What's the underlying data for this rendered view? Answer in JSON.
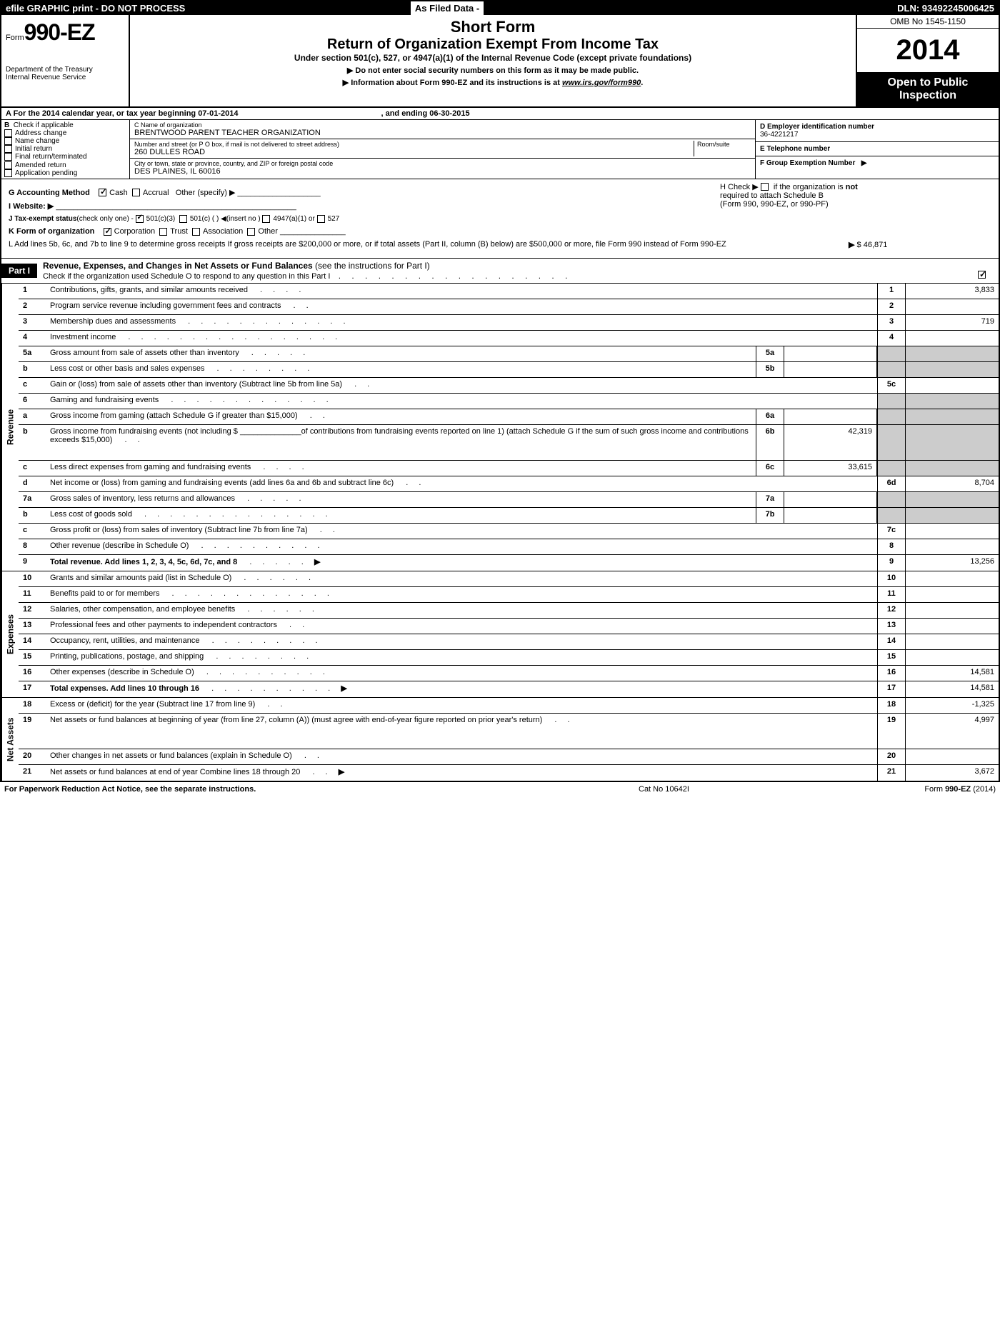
{
  "header": {
    "efile": "efile GRAPHIC print - DO NOT PROCESS",
    "asFiled": "As Filed Data -",
    "dln": "DLN: 93492245006425"
  },
  "title": {
    "formWord": "Form",
    "formNum": "990-EZ",
    "dept1": "Department of the Treasury",
    "dept2": "Internal Revenue Service",
    "shortForm": "Short Form",
    "returnTitle": "Return of Organization Exempt From Income Tax",
    "underSection": "Under section 501(c), 527, or 4947(a)(1) of the Internal Revenue Code (except private foundations)",
    "noSSN": "▶ Do not enter social security numbers on this form as it may be made public.",
    "infoAbout": "▶ Information about Form 990-EZ and its instructions is at",
    "infoLink": "www.irs.gov/form990",
    "omb": "OMB No 1545-1150",
    "year": "2014",
    "open1": "Open to Public",
    "open2": "Inspection"
  },
  "sectionA": {
    "rowA": "A  For the 2014 calendar year, or tax year beginning 07-01-2014",
    "ending": ", and ending 06-30-2015"
  },
  "sectionB": {
    "label": "B",
    "checkIf": "Check if applicable",
    "items": [
      "Address change",
      "Name change",
      "Initial return",
      "Final return/terminated",
      "Amended return",
      "Application pending"
    ]
  },
  "sectionC": {
    "nameLabel": "C Name of organization",
    "name": "BRENTWOOD PARENT TEACHER ORGANIZATION",
    "streetLabel": "Number and street (or P O box, if mail is not delivered to street address)",
    "roomLabel": "Room/suite",
    "street": "260 DULLES ROAD",
    "cityLabel": "City or town, state or province, country, and ZIP or foreign postal code",
    "city": "DES PLAINES, IL  60016"
  },
  "sectionD": {
    "label": "D Employer identification number",
    "value": "36-4221217"
  },
  "sectionE": {
    "label": "E Telephone number",
    "value": ""
  },
  "sectionF": {
    "label": "F Group Exemption Number",
    "arrow": "▶"
  },
  "sectionG": {
    "label": "G Accounting Method",
    "cash": "Cash",
    "accrual": "Accrual",
    "other": "Other (specify) ▶"
  },
  "sectionH": {
    "line1": "H  Check ▶",
    "line2": "if the organization is",
    "not": "not",
    "line3": "required to attach Schedule B",
    "line4": "(Form 990, 990-EZ, or 990-PF)"
  },
  "sectionI": {
    "label": "I Website: ▶"
  },
  "sectionJ": {
    "label": "J Tax-exempt status",
    "sub": "(check only one) -",
    "c3": "501(c)(3)",
    "c": "501(c) (   ) ◀(insert no )",
    "a": "4947(a)(1) or",
    "s527": "527"
  },
  "sectionK": {
    "label": "K Form of organization",
    "corp": "Corporation",
    "trust": "Trust",
    "assoc": "Association",
    "other": "Other"
  },
  "sectionL": {
    "text": "L Add lines 5b, 6c, and 7b to line 9 to determine gross receipts  If gross receipts are $200,000 or more, or if total assets (Part II, column (B) below) are $500,000 or more, file Form 990 instead of Form 990-EZ",
    "arrow": "▶",
    "value": "$ 46,871"
  },
  "part1": {
    "label": "Part I",
    "title": "Revenue, Expenses, and Changes in Net Assets or Fund Balances",
    "sub": "(see the instructions for Part I)",
    "schedO": "Check if the organization used Schedule O to respond to any question in this Part I"
  },
  "revenue": {
    "sideLabel": "Revenue",
    "lines": [
      {
        "num": "1",
        "desc": "Contributions, gifts, grants, and similar amounts received",
        "rnum": "1",
        "rval": "3,833"
      },
      {
        "num": "2",
        "desc": "Program service revenue including government fees and contracts",
        "rnum": "2",
        "rval": ""
      },
      {
        "num": "3",
        "desc": "Membership dues and assessments",
        "rnum": "3",
        "rval": "719"
      },
      {
        "num": "4",
        "desc": "Investment income",
        "rnum": "4",
        "rval": ""
      },
      {
        "num": "5a",
        "desc": "Gross amount from sale of assets other than inventory",
        "snum": "5a",
        "sval": "",
        "shadedRight": true
      },
      {
        "num": "b",
        "desc": "Less  cost or other basis and sales expenses",
        "snum": "5b",
        "sval": "",
        "shadedRight": true
      },
      {
        "num": "c",
        "desc": "Gain or (loss) from sale of assets other than inventory (Subtract line 5b from line 5a)",
        "rnum": "5c",
        "rval": ""
      },
      {
        "num": "6",
        "desc": "Gaming and fundraising events",
        "shadedRight": true,
        "noSubCells": true
      },
      {
        "num": "a",
        "desc": "Gross income from gaming (attach Schedule G if greater than $15,000)",
        "snum": "6a",
        "sval": "",
        "shadedRight": true
      },
      {
        "num": "b",
        "desc": "Gross income from fundraising events (not including $ ______________of contributions from fundraising events reported on line 1) (attach Schedule G if the sum of such gross income and contributions exceeds $15,000)",
        "snum": "6b",
        "sval": "42,319",
        "shadedRight": true,
        "tall": true
      },
      {
        "num": "c",
        "desc": "Less  direct expenses from gaming and fundraising events",
        "snum": "6c",
        "sval": "33,615",
        "shadedRight": true
      },
      {
        "num": "d",
        "desc": "Net income or (loss) from gaming and fundraising events (add lines 6a and 6b and subtract line 6c)",
        "rnum": "6d",
        "rval": "8,704"
      },
      {
        "num": "7a",
        "desc": "Gross sales of inventory, less returns and allowances",
        "snum": "7a",
        "sval": "",
        "shadedRight": true
      },
      {
        "num": "b",
        "desc": "Less  cost of goods sold",
        "snum": "7b",
        "sval": "",
        "shadedRight": true
      },
      {
        "num": "c",
        "desc": "Gross profit or (loss) from sales of inventory (Subtract line 7b from line 7a)",
        "rnum": "7c",
        "rval": ""
      },
      {
        "num": "8",
        "desc": "Other revenue (describe in Schedule O)",
        "rnum": "8",
        "rval": ""
      },
      {
        "num": "9",
        "desc": "Total revenue. Add lines 1, 2, 3, 4, 5c, 6d, 7c, and 8",
        "rnum": "9",
        "rval": "13,256",
        "bold": true,
        "arrow": true
      }
    ]
  },
  "expenses": {
    "sideLabel": "Expenses",
    "lines": [
      {
        "num": "10",
        "desc": "Grants and similar amounts paid (list in Schedule O)",
        "rnum": "10",
        "rval": ""
      },
      {
        "num": "11",
        "desc": "Benefits paid to or for members",
        "rnum": "11",
        "rval": ""
      },
      {
        "num": "12",
        "desc": "Salaries, other compensation, and employee benefits",
        "rnum": "12",
        "rval": ""
      },
      {
        "num": "13",
        "desc": "Professional fees and other payments to independent contractors",
        "rnum": "13",
        "rval": ""
      },
      {
        "num": "14",
        "desc": "Occupancy, rent, utilities, and maintenance",
        "rnum": "14",
        "rval": ""
      },
      {
        "num": "15",
        "desc": "Printing, publications, postage, and shipping",
        "rnum": "15",
        "rval": ""
      },
      {
        "num": "16",
        "desc": "Other expenses (describe in Schedule O)",
        "rnum": "16",
        "rval": "14,581"
      },
      {
        "num": "17",
        "desc": "Total expenses. Add lines 10 through 16",
        "rnum": "17",
        "rval": "14,581",
        "bold": true,
        "arrow": true
      }
    ]
  },
  "netassets": {
    "sideLabel": "Net Assets",
    "lines": [
      {
        "num": "18",
        "desc": "Excess or (deficit) for the year (Subtract line 17 from line 9)",
        "rnum": "18",
        "rval": "-1,325"
      },
      {
        "num": "19",
        "desc": "Net assets or fund balances at beginning of year (from line 27, column (A)) (must agree with end-of-year figure reported on prior year's return)",
        "rnum": "19",
        "rval": "4,997",
        "tall": true
      },
      {
        "num": "20",
        "desc": "Other changes in net assets or fund balances (explain in Schedule O)",
        "rnum": "20",
        "rval": ""
      },
      {
        "num": "21",
        "desc": "Net assets or fund balances at end of year  Combine lines 18 through 20",
        "rnum": "21",
        "rval": "3,672",
        "arrow": true
      }
    ]
  },
  "footer": {
    "left": "For Paperwork Reduction Act Notice, see the separate instructions.",
    "mid": "Cat No  10642I",
    "right": "Form 990-EZ (2014)"
  },
  "colors": {
    "black": "#000000",
    "white": "#ffffff",
    "shaded": "#cccccc"
  }
}
